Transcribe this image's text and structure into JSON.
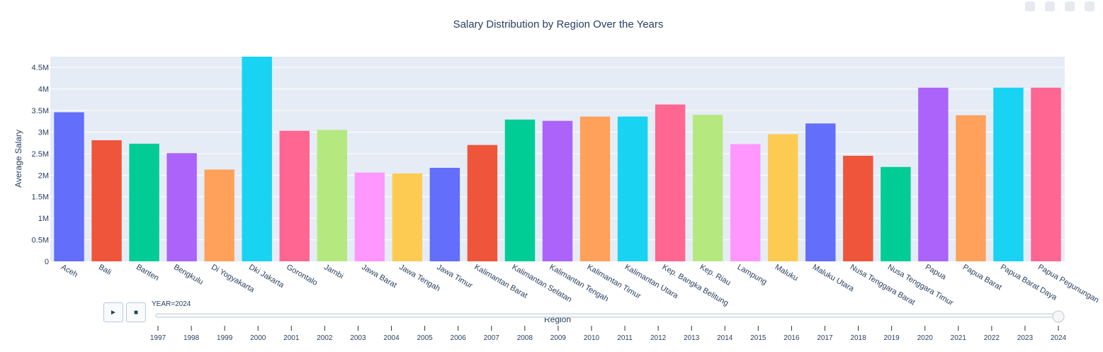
{
  "chart_data": {
    "type": "bar",
    "title": "Salary Distribution by Region Over the Years",
    "xlabel": "Region",
    "ylabel": "Average Salary",
    "ylim": [
      0,
      4750000
    ],
    "yticks": [
      0,
      500000,
      1000000,
      1500000,
      2000000,
      2500000,
      3000000,
      3500000,
      4000000,
      4500000
    ],
    "ytick_labels": [
      "0",
      "0.5M",
      "1M",
      "1.5M",
      "2M",
      "2.5M",
      "3M",
      "3.5M",
      "4M",
      "4.5M"
    ],
    "grid": true,
    "legend": "none",
    "categories": [
      "Aceh",
      "Bali",
      "Banten",
      "Bengkulu",
      "Di Yogyakarta",
      "Dki Jakarta",
      "Gorontalo",
      "Jambi",
      "Jawa Barat",
      "Jawa Tengah",
      "Jawa Timur",
      "Kalimantan Barat",
      "Kalimantan Selatan",
      "Kalimantan Tengah",
      "Kalimantan Timur",
      "Kalimantan Utara",
      "Kep. Bangka Belitung",
      "Kep. Riau",
      "Lampung",
      "Maluku",
      "Maluku Utara",
      "Nusa Tenggara Barat",
      "Nusa Tenggara Timur",
      "Papua",
      "Papua Barat",
      "Papua Barat Daya",
      "Papua Pegunungan"
    ],
    "values": [
      3460000,
      2810000,
      2730000,
      2510000,
      2130000,
      4900000,
      3030000,
      3050000,
      2060000,
      2040000,
      2170000,
      2700000,
      3290000,
      3260000,
      3360000,
      3360000,
      3640000,
      3400000,
      2720000,
      2950000,
      3200000,
      2450000,
      2190000,
      4030000,
      3390000,
      4030000,
      4030000
    ],
    "colors": [
      "#636efa",
      "#ef553b",
      "#00cc96",
      "#ab63fa",
      "#ffa15a",
      "#19d3f3",
      "#ff6692",
      "#b6e880",
      "#ff97ff",
      "#fecb52",
      "#636efa",
      "#ef553b",
      "#00cc96",
      "#ab63fa",
      "#ffa15a",
      "#19d3f3",
      "#ff6692",
      "#b6e880",
      "#ff97ff",
      "#fecb52",
      "#636efa",
      "#ef553b",
      "#00cc96",
      "#ab63fa",
      "#ffa15a",
      "#19d3f3",
      "#ff6692"
    ]
  },
  "slider": {
    "current_label": "YEAR=2024",
    "years": [
      "1997",
      "1998",
      "1999",
      "2000",
      "2001",
      "2002",
      "2003",
      "2004",
      "2005",
      "2006",
      "2007",
      "2008",
      "2009",
      "2010",
      "2011",
      "2012",
      "2013",
      "2014",
      "2015",
      "2016",
      "2017",
      "2018",
      "2019",
      "2020",
      "2021",
      "2022",
      "2023",
      "2024"
    ],
    "selected": "2024",
    "play_label": "►",
    "stop_label": "■"
  },
  "theme": {
    "plot_bg": "#e5ecf6",
    "grid": "#ffffff",
    "text": "#2a3f5f"
  }
}
